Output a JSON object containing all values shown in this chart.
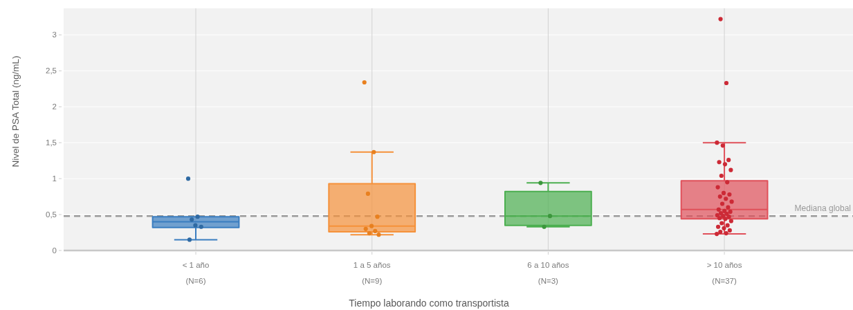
{
  "chart_data": {
    "type": "box",
    "xlabel": "Tiempo laborando como transportista",
    "ylabel": "Nivel de PSA Total (ng/mL)",
    "categories": [
      "< 1 año\n(N=6)",
      "1 a 5 años\n(N=9)",
      "6 a 10 años\n(N=3)",
      "> 10 años\n(N=37)"
    ],
    "ylim": [
      0,
      3.37
    ],
    "yticks": [
      0,
      {
        "value": 0.5,
        "label": "0,5"
      },
      1,
      {
        "value": 1.5,
        "label": "1,5"
      },
      2,
      {
        "value": 2.5,
        "label": "2,5"
      },
      3
    ],
    "grid": true,
    "marker": "circle",
    "series": [
      {
        "colors": [
          "#3a7dc0",
          "#f5913a",
          "#4caf50",
          "#e0505a"
        ],
        "boxes": [
          {
            "low": 0.15,
            "q1": 0.32,
            "median": 0.4,
            "q3": 0.47,
            "high": 0.47
          },
          {
            "low": 0.22,
            "q1": 0.26,
            "median": 0.34,
            "q3": 0.93,
            "high": 1.37
          },
          {
            "low": 0.33,
            "q1": 0.35,
            "median": 0.48,
            "q3": 0.82,
            "high": 0.94
          },
          {
            "low": 0.23,
            "q1": 0.44,
            "median": 0.57,
            "q3": 0.97,
            "high": 1.5
          }
        ]
      },
      {
        "type": "scatter",
        "color": "#2f6aa3",
        "x": [
          "< 1 año\n(N=6)",
          "< 1 año\n(N=6)",
          "< 1 año\n(N=6)",
          "< 1 año\n(N=6)",
          "< 1 año\n(N=6)",
          "< 1 año\n(N=6)"
        ],
        "values": [
          1.0,
          0.47,
          0.43,
          0.33,
          0.35,
          0.15
        ]
      },
      {
        "type": "scatter",
        "color": "#e8801f",
        "x": [
          "1 a 5 años\n(N=9)",
          "1 a 5 años\n(N=9)",
          "1 a 5 años\n(N=9)",
          "1 a 5 años\n(N=9)",
          "1 a 5 años\n(N=9)",
          "1 a 5 años\n(N=9)",
          "1 a 5 años\n(N=9)",
          "1 a 5 años\n(N=9)",
          "1 a 5 años\n(N=9)"
        ],
        "values": [
          2.34,
          1.37,
          0.79,
          0.47,
          0.34,
          0.3,
          0.27,
          0.24,
          0.22
        ]
      },
      {
        "type": "scatter",
        "color": "#3c963c",
        "x": [
          "6 a 10 años\n(N=3)",
          "6 a 10 años\n(N=3)",
          "6 a 10 años\n(N=3)"
        ],
        "values": [
          0.94,
          0.48,
          0.33
        ]
      },
      {
        "type": "scatter",
        "color": "#cc2a36",
        "x": [
          "> 10 años\n(N=37)",
          "> 10 años\n(N=37)",
          "> 10 años\n(N=37)",
          "> 10 años\n(N=37)",
          "> 10 años\n(N=37)",
          "> 10 años\n(N=37)",
          "> 10 años\n(N=37)",
          "> 10 años\n(N=37)",
          "> 10 años\n(N=37)",
          "> 10 años\n(N=37)",
          "> 10 años\n(N=37)",
          "> 10 años\n(N=37)",
          "> 10 años\n(N=37)",
          "> 10 años\n(N=37)",
          "> 10 años\n(N=37)",
          "> 10 años\n(N=37)",
          "> 10 años\n(N=37)",
          "> 10 años\n(N=37)",
          "> 10 años\n(N=37)",
          "> 10 años\n(N=37)",
          "> 10 años\n(N=37)",
          "> 10 años\n(N=37)",
          "> 10 años\n(N=37)",
          "> 10 años\n(N=37)",
          "> 10 años\n(N=37)",
          "> 10 años\n(N=37)",
          "> 10 años\n(N=37)",
          "> 10 años\n(N=37)",
          "> 10 años\n(N=37)",
          "> 10 años\n(N=37)",
          "> 10 años\n(N=37)",
          "> 10 años\n(N=37)",
          "> 10 años\n(N=37)",
          "> 10 años\n(N=37)",
          "> 10 años\n(N=37)",
          "> 10 años\n(N=37)",
          "> 10 años\n(N=37)"
        ],
        "values": [
          0.23,
          0.24,
          0.26,
          0.28,
          0.31,
          0.33,
          0.35,
          0.38,
          0.41,
          0.44,
          0.45,
          0.47,
          0.48,
          0.49,
          0.51,
          0.52,
          0.54,
          0.55,
          0.57,
          0.6,
          0.65,
          0.68,
          0.72,
          0.75,
          0.78,
          0.8,
          0.88,
          0.95,
          1.04,
          1.12,
          1.2,
          1.23,
          1.26,
          1.46,
          1.5,
          2.33,
          3.22
        ]
      }
    ],
    "ref_lines": [
      {
        "axis": "y",
        "value": 0.48,
        "label": "Mediana global",
        "color": "#9a9a9a",
        "line_style": "dashed"
      }
    ]
  }
}
